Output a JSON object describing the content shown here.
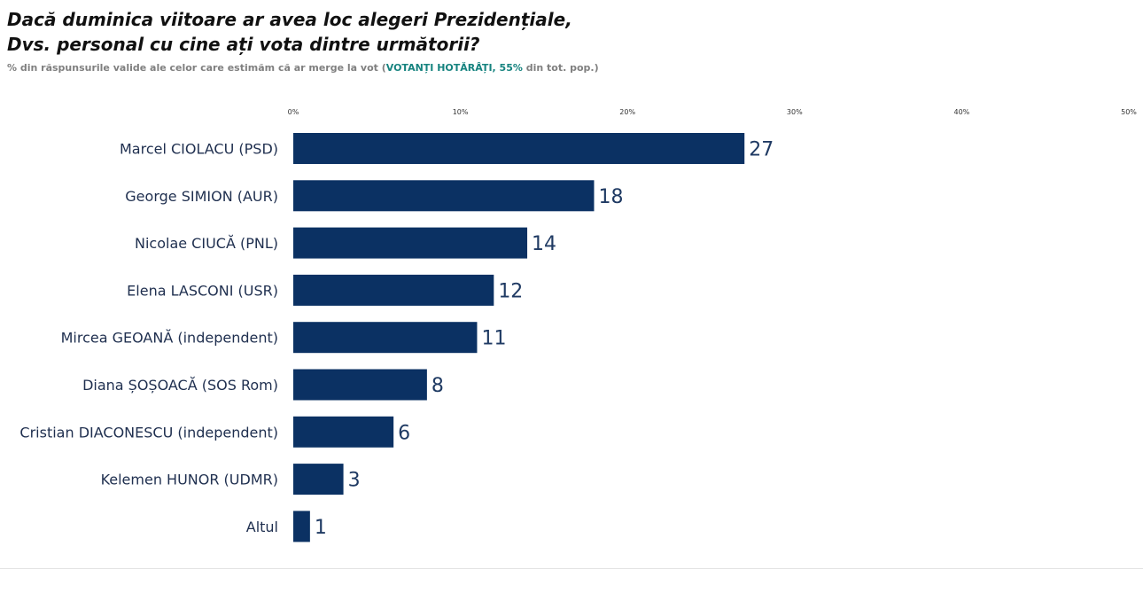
{
  "header": {
    "title_line1": "Dacă duminica viitoare ar avea loc alegeri Prezidențiale,",
    "title_line2": "Dvs. personal cu cine ați vota dintre următorii?",
    "subtitle_pre": "% din răspunsurile valide ale celor care estimăm că ar merge la vot (",
    "subtitle_highlight": "VOTANȚI HOTĂRÂȚI, 55%",
    "subtitle_post": " din tot. pop.)"
  },
  "colors": {
    "bar": "#0b3163",
    "highlight": "#16837f",
    "value_text": "#1f3a63"
  },
  "chart_data": {
    "type": "bar",
    "orientation": "horizontal",
    "categories": [
      "Marcel CIOLACU (PSD)",
      "George SIMION (AUR)",
      "Nicolae CIUCĂ (PNL)",
      "Elena LASCONI (USR)",
      "Mircea GEOANĂ (independent)",
      "Diana ȘOȘOACĂ (SOS Rom)",
      "Cristian DIACONESCU (independent)",
      "Kelemen HUNOR (UDMR)",
      "Altul"
    ],
    "values": [
      27,
      18,
      14,
      12,
      11,
      8,
      6,
      3,
      1
    ],
    "xlim": [
      0,
      50
    ],
    "xticks": [
      "0%",
      "10%",
      "20%",
      "30%",
      "40%",
      "50%"
    ],
    "axis_position": "top",
    "grid": false
  }
}
